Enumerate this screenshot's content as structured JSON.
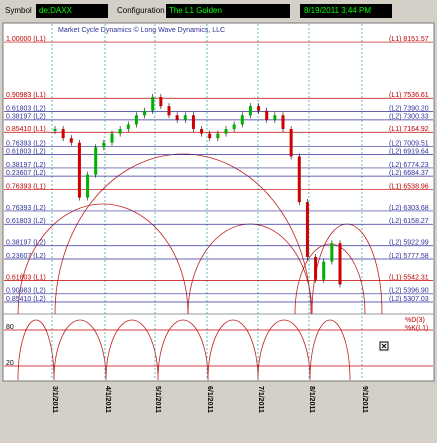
{
  "toolbar": {
    "symbol_label": "Symbol",
    "symbol": "de;DAXX",
    "config_label": "Configuration",
    "config": "The L1 Golden",
    "timestamp": "8/19/2011 3:44 PM"
  },
  "chart_data": {
    "type": "candlestick",
    "title": "Market Cycle Dynamics © Long Wave Dynamics, LLC",
    "ylim": [
      5165,
      8338
    ],
    "levels": [
      {
        "left": "1.00000 (L1)",
        "value": 8151.57,
        "right": "(L1) 8151.57",
        "color": "#c00000"
      },
      {
        "left": "0.90983 (L1)",
        "value": 7536.61,
        "right": "(L1) 7536.61",
        "color": "#c00000"
      },
      {
        "left": "0.61803 (L2)",
        "value": 7390.2,
        "right": "(L2) 7390.20",
        "color": "#30309a"
      },
      {
        "left": "0.38197 (L2)",
        "value": 7300.33,
        "right": "(L2) 7300.33",
        "color": "#30309a"
      },
      {
        "left": "0.85410 (L1)",
        "value": 7164.92,
        "right": "(L1) 7164.92",
        "color": "#c00000"
      },
      {
        "left": "0.76393 (L2)",
        "value": 7009.51,
        "right": "(L2) 7009.51",
        "color": "#30309a"
      },
      {
        "left": "0.61803 (L2)",
        "value": 6919.64,
        "right": "(L2) 6919.64",
        "color": "#30309a"
      },
      {
        "left": "0.38197 (L2)",
        "value": 6774.23,
        "right": "(L2) 6774.23",
        "color": "#30309a"
      },
      {
        "left": "0.23607 (L2)",
        "value": 6684.37,
        "right": "(L2) 6684.37",
        "color": "#30309a"
      },
      {
        "left": "0.76393 (L1)",
        "value": 6538.96,
        "right": "(L1) 6538.96",
        "color": "#c00000"
      },
      {
        "left": "0.76393 (L2)",
        "value": 6303.68,
        "right": "(L2) 6303.68",
        "color": "#30309a"
      },
      {
        "left": "0.61803 (L2)",
        "value": 6158.27,
        "right": "(L2) 6158.27",
        "color": "#30309a"
      },
      {
        "left": "0.38197 (L2)",
        "value": 5922.99,
        "right": "(L2) 5922.99",
        "color": "#30309a"
      },
      {
        "left": "0.23607 (L2)",
        "value": 5777.58,
        "right": "(L2) 5777.58",
        "color": "#30309a"
      },
      {
        "left": "0.61803 (L1)",
        "value": 5542.31,
        "right": "(L1) 5542.31",
        "color": "#c00000"
      },
      {
        "left": "0.90983 (L2)",
        "value": 5396.9,
        "right": "(L2) 5396.90",
        "color": "#30309a"
      },
      {
        "left": "0.85410 (L2)",
        "value": 5307.03,
        "right": "(L2) 5307.03",
        "color": "#30309a"
      }
    ],
    "dates": [
      "3/1/2011",
      "4/1/2011",
      "5/1/2011",
      "6/1/2011",
      "7/1/2011",
      "8/1/2011",
      "9/1/2011"
    ],
    "closes": [
      7200,
      7100,
      7050,
      6450,
      6700,
      7000,
      7050,
      7150,
      7200,
      7250,
      7350,
      7400,
      7550,
      7450,
      7350,
      7300,
      7350,
      7200,
      7150,
      7100,
      7150,
      7200,
      7250,
      7350,
      7450,
      7400,
      7300,
      7350,
      7200,
      6900,
      6400,
      5800,
      5550,
      5750,
      5950,
      5500
    ],
    "up_color": "#00b000",
    "down_color": "#d00000",
    "oscillator": {
      "ylim": [
        0,
        100
      ],
      "yticks": [
        80,
        20
      ],
      "labels": [
        "%D(3)",
        "%K(L1)"
      ]
    }
  }
}
